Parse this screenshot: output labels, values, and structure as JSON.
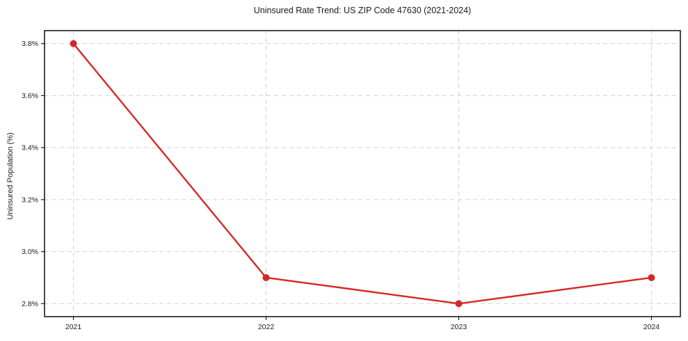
{
  "chart_data": {
    "type": "line",
    "title": "Uninsured Rate Trend: US ZIP Code 47630 (2021-2024)",
    "xlabel": "",
    "ylabel": "Uninsured Population (%)",
    "categories": [
      "2021",
      "2022",
      "2023",
      "2024"
    ],
    "x": [
      2021,
      2022,
      2023,
      2024
    ],
    "values": [
      3.8,
      2.9,
      2.8,
      2.9
    ],
    "x_tick_labels": [
      "2021",
      "2022",
      "2023",
      "2024"
    ],
    "y_ticks": [
      2.8,
      3.0,
      3.2,
      3.4,
      3.6,
      3.8
    ],
    "y_tick_labels": [
      "2.8%",
      "3.0%",
      "3.2%",
      "3.4%",
      "3.6%",
      "3.8%"
    ],
    "xlim": [
      2020.85,
      2024.15
    ],
    "ylim": [
      2.75,
      3.85
    ],
    "grid": true,
    "grid_style": "dashed",
    "legend": "none",
    "colors": {
      "line": "#d62728",
      "marker": "#d62728",
      "grid": "#d0d0d0",
      "spine": "#1a1a1a",
      "text": "#1a1a1a",
      "background": "#ffffff"
    }
  }
}
